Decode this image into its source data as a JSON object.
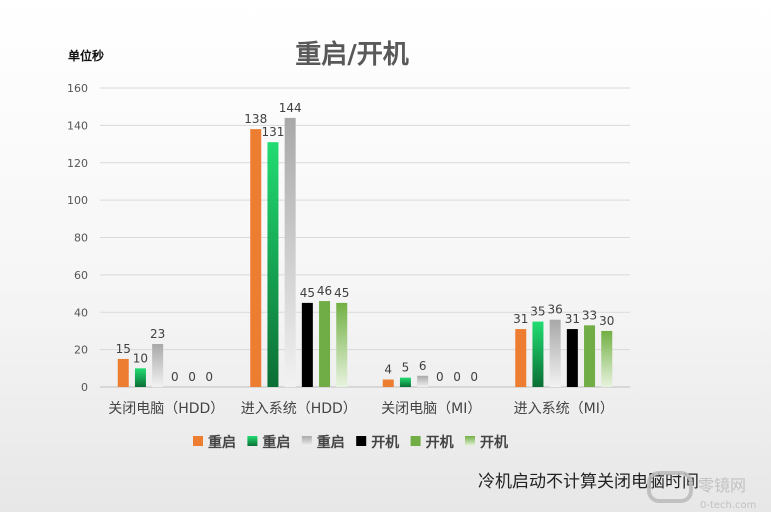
{
  "chart_data": {
    "type": "bar",
    "title": "重启/开机",
    "unit_label": "单位秒",
    "categories": [
      "关闭电脑（HDD）",
      "进入系统（HDD）",
      "关闭电脑（MI）",
      "进入系统（MI）"
    ],
    "ylim": [
      0,
      160
    ],
    "yticks": [
      0,
      20,
      40,
      60,
      80,
      100,
      120,
      140,
      160
    ],
    "grid": true,
    "legend_position": "bottom",
    "series": [
      {
        "name": "重启",
        "values": [
          15,
          138,
          4,
          31
        ],
        "color": "#ed7d31",
        "style": "solid"
      },
      {
        "name": "重启",
        "values": [
          10,
          131,
          5,
          35
        ],
        "color": "#1ed16a",
        "style": "gradient-green"
      },
      {
        "name": "重启",
        "values": [
          23,
          144,
          6,
          36
        ],
        "color": "#a6a6a6",
        "style": "gradient-gray"
      },
      {
        "name": "开机",
        "values": [
          0,
          45,
          0,
          31
        ],
        "color": "#000000",
        "style": "solid"
      },
      {
        "name": "开机",
        "values": [
          0,
          46,
          0,
          33
        ],
        "color": "#70ad47",
        "style": "solid"
      },
      {
        "name": "开机",
        "values": [
          0,
          45,
          0,
          30
        ],
        "color": "#8bc34a",
        "style": "gradient-lightgreen"
      }
    ]
  },
  "annotation": "冷机启动不计算关闭电脑时间",
  "watermark": {
    "name": "零镜网",
    "url": "0-tech.com"
  }
}
